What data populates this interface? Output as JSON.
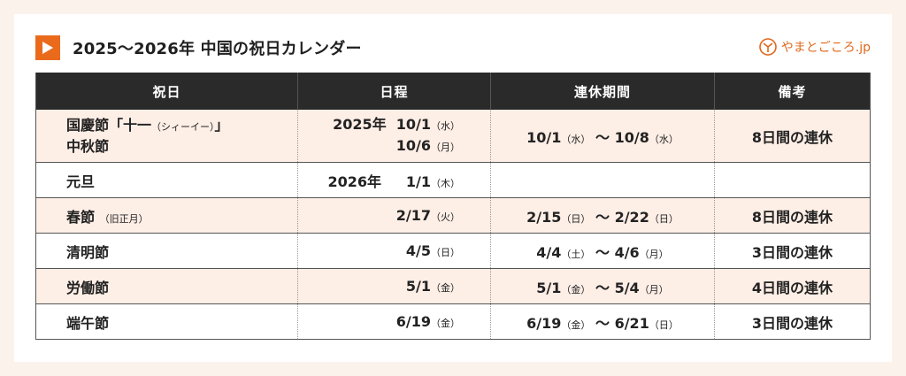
{
  "header": {
    "title": "2025〜2026年 中国の祝日カレンダー",
    "logo_text": "やまとごころ.jp"
  },
  "colors": {
    "accent": "#ea6a1c",
    "header_bg": "#2a2a2a",
    "alt_row": "#fdeee6",
    "page_bg": "#fcf2ec"
  },
  "table": {
    "columns": [
      "祝日",
      "日程",
      "連休期間",
      "備考"
    ],
    "rows": [
      {
        "holiday": "国慶節「十一",
        "holiday_note": "（シィーイー）",
        "holiday_end": "」",
        "holiday2": "中秋節",
        "date_year": "2025年",
        "date": "10/1",
        "date_day": "（水）",
        "date2": "10/6",
        "date2_day": "（月）",
        "period_start": "10/1",
        "period_start_day": "（水）",
        "period_sep": "〜",
        "period_end": "10/8",
        "period_end_day": "（水）",
        "remark": "8日間の連休"
      },
      {
        "holiday": "元旦",
        "date_year": "2026年",
        "date": "1/1",
        "date_day": "（木）"
      },
      {
        "holiday": "春節",
        "holiday_note": "（旧正月）",
        "date": "2/17",
        "date_day": "（火）",
        "period_start": "2/15",
        "period_start_day": "（日）",
        "period_sep": "〜",
        "period_end": "2/22",
        "period_end_day": "（日）",
        "remark": "8日間の連休"
      },
      {
        "holiday": "清明節",
        "date": "4/5",
        "date_day": "（日）",
        "period_start": "4/4",
        "period_start_day": "（土）",
        "period_sep": "〜",
        "period_end": "4/6",
        "period_end_day": "（月）",
        "remark": "3日間の連休"
      },
      {
        "holiday": "労働節",
        "date": "5/1",
        "date_day": "（金）",
        "period_start": "5/1",
        "period_start_day": "（金）",
        "period_sep": "〜",
        "period_end": "5/4",
        "period_end_day": "（月）",
        "remark": "4日間の連休"
      },
      {
        "holiday": "端午節",
        "date": "6/19",
        "date_day": "（金）",
        "period_start": "6/19",
        "period_start_day": "（金）",
        "period_sep": "〜",
        "period_end": "6/21",
        "period_end_day": "（日）",
        "remark": "3日間の連休"
      }
    ]
  }
}
